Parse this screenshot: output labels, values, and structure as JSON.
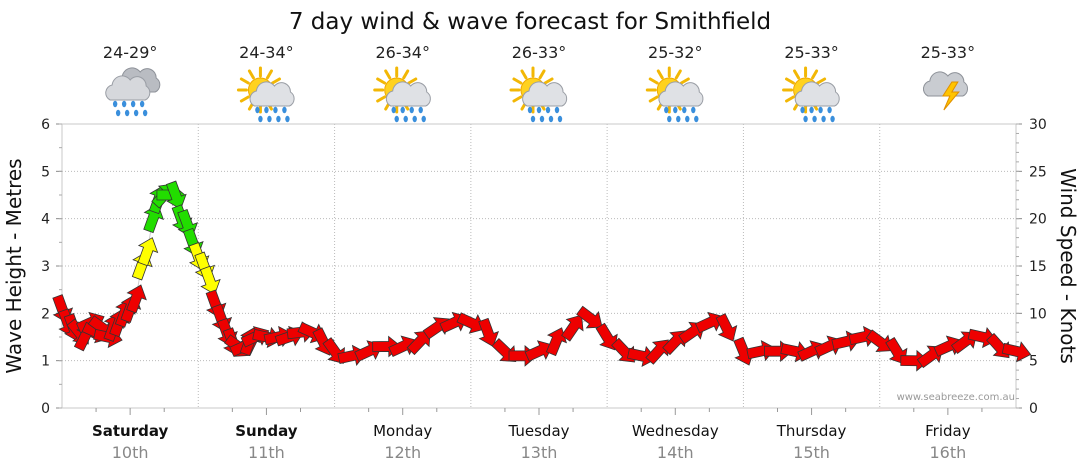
{
  "chart_data": {
    "type": "line",
    "title": "7 day wind & wave forecast for Smithfield",
    "ylabel_left": "Wave Height - Metres",
    "ylabel_right": "Wind Speed - Knots",
    "ylim_left": [
      0,
      6
    ],
    "ylim_right": [
      0,
      30
    ],
    "yticks_left": [
      "0",
      "1",
      "2",
      "3",
      "4",
      "5",
      "6"
    ],
    "yticks_right": [
      "0",
      "5",
      "10",
      "15",
      "20",
      "25",
      "30"
    ],
    "x_unit": "hours from Saturday 00:00",
    "xlim": [
      0,
      168
    ],
    "days": [
      {
        "name": "Saturday",
        "date": "10th",
        "bold": true,
        "temp": "24-29°",
        "icon": "rain-cloud-icon"
      },
      {
        "name": "Sunday",
        "date": "11th",
        "bold": true,
        "temp": "24-34°",
        "icon": "sun-showers-icon"
      },
      {
        "name": "Monday",
        "date": "12th",
        "bold": false,
        "temp": "26-34°",
        "icon": "sun-showers-icon"
      },
      {
        "name": "Tuesday",
        "date": "13th",
        "bold": false,
        "temp": "26-33°",
        "icon": "sun-showers-icon"
      },
      {
        "name": "Wednesday",
        "date": "14th",
        "bold": false,
        "temp": "25-32°",
        "icon": "sun-showers-icon"
      },
      {
        "name": "Thursday",
        "date": "15th",
        "bold": false,
        "temp": "25-33°",
        "icon": "sun-showers-icon"
      },
      {
        "name": "Friday",
        "date": "16th",
        "bold": false,
        "temp": "25-33°",
        "icon": "storm-cloud-icon"
      }
    ],
    "wind_series": {
      "name": "Wind Speed (knots)",
      "hours": [
        0,
        1,
        2,
        3,
        4,
        5,
        6,
        7,
        8,
        9,
        10,
        11,
        12,
        13,
        14,
        15,
        16,
        17,
        18,
        19,
        20,
        21,
        22,
        23,
        24,
        25,
        26,
        27,
        28,
        29,
        30,
        31,
        32,
        33,
        34,
        36,
        38,
        40,
        42,
        44,
        46,
        48,
        51,
        54,
        57,
        60,
        63,
        66,
        69,
        72,
        75,
        78,
        81,
        84,
        87,
        90,
        93,
        96,
        99,
        102,
        105,
        108,
        111,
        114,
        117,
        120,
        123,
        126,
        129,
        132,
        135,
        138,
        141,
        144,
        147,
        150,
        153,
        156,
        159,
        162,
        165,
        168
      ],
      "knots": [
        10.5,
        9,
        8.5,
        8,
        7.5,
        9,
        8,
        8.5,
        7.5,
        8.5,
        9,
        10,
        10.5,
        11.5,
        15,
        16.5,
        20,
        22,
        22.5,
        22.5,
        22.5,
        20,
        19.5,
        17.5,
        16,
        15,
        13.5,
        11,
        9.5,
        8,
        7,
        6.5,
        6.5,
        7,
        7.5,
        7.5,
        7.5,
        7.5,
        8,
        8,
        7,
        6,
        5.5,
        6,
        6.5,
        6.5,
        7,
        8.5,
        9,
        9,
        8,
        6,
        5.5,
        6,
        7,
        8.5,
        9.5,
        7.5,
        6,
        5.5,
        6,
        7,
        8,
        9,
        8.5,
        6,
        6,
        6,
        6,
        6,
        6.5,
        7,
        7.5,
        7,
        6,
        5,
        5.5,
        6.5,
        7,
        7.5,
        6.5,
        6
      ]
    },
    "wind_color_scale": [
      {
        "max_knots": 12,
        "color": "#ee0000"
      },
      {
        "max_knots": 17,
        "color": "#ffff00"
      },
      {
        "max_knots": 30,
        "color": "#22dd00"
      }
    ],
    "grid": true,
    "watermark": "www.seabreeze.com.au"
  }
}
